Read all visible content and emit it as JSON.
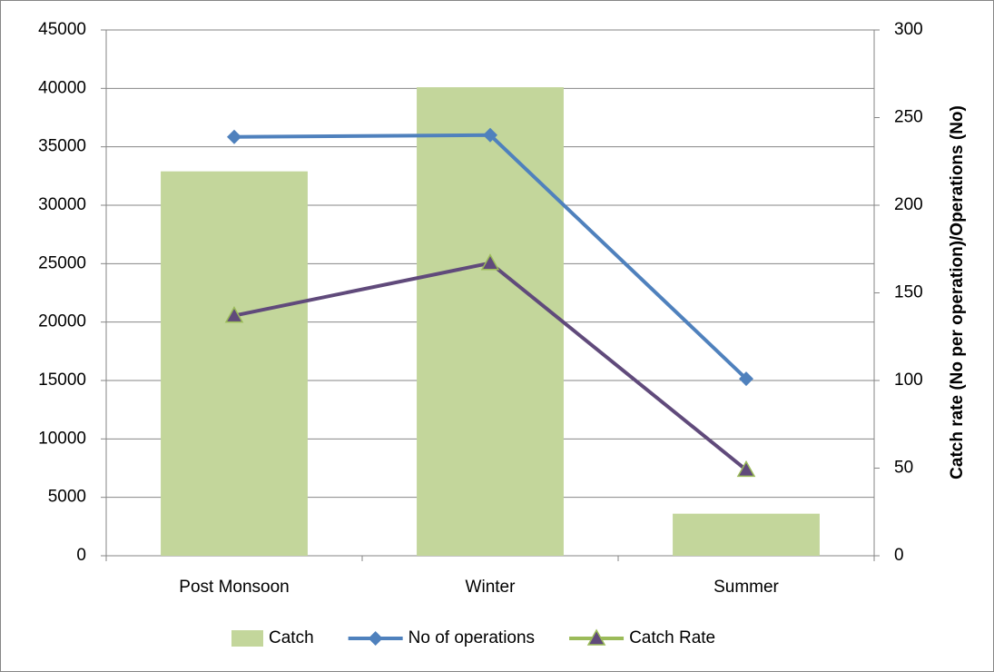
{
  "chart_data": {
    "type": "bar_line",
    "categories": [
      "Post Monsoon",
      "Winter",
      "Summer"
    ],
    "series": [
      {
        "name": "Catch",
        "type": "bar",
        "color": "#c3d69b",
        "values": [
          32900,
          40100,
          3600
        ]
      },
      {
        "name": "No of operations",
        "type": "line",
        "marker": "diamond",
        "axis": "y2",
        "color": "#4f81bd",
        "values": [
          239,
          240,
          101
        ]
      },
      {
        "name": "Catch Rate",
        "type": "line",
        "marker": "triangle",
        "axis": "y2",
        "color": "#604a7b",
        "values": [
          137,
          167,
          49
        ]
      }
    ],
    "ylim": [
      0,
      45000
    ],
    "yticks": [
      0,
      5000,
      10000,
      15000,
      20000,
      25000,
      30000,
      35000,
      40000,
      45000
    ],
    "y2lim": [
      0,
      300
    ],
    "y2ticks": [
      0,
      50,
      100,
      150,
      200,
      250,
      300
    ],
    "y2label": "Catch rate (No per operation)/Operations (No)",
    "grid": true,
    "legend": "bottom"
  }
}
